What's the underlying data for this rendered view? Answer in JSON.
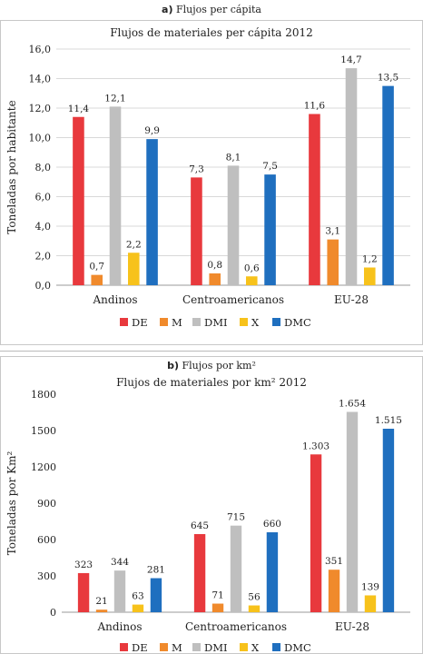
{
  "chart_data": [
    {
      "type": "bar",
      "heading_letter": "a)",
      "heading": "Flujos per cápita",
      "title": "Flujos de materiales per cápita 2012",
      "ylabel": "Toneladas por habitante",
      "xlabel": "",
      "ylim": [
        0,
        16
      ],
      "yticks": [
        "0,0",
        "2,0",
        "4,0",
        "6,0",
        "8,0",
        "10,0",
        "12,0",
        "14,0",
        "16,0"
      ],
      "categories": [
        "Andinos",
        "Centroamericanos",
        "EU-28"
      ],
      "series": [
        {
          "name": "DE",
          "color": "#e8393d",
          "values": [
            11.4,
            7.3,
            11.6
          ],
          "labels": [
            "11,4",
            "7,3",
            "11,6"
          ]
        },
        {
          "name": "M",
          "color": "#f08a2c",
          "values": [
            0.7,
            0.8,
            3.1
          ],
          "labels": [
            "0,7",
            "0,8",
            "3,1"
          ]
        },
        {
          "name": "DMI",
          "color": "#bfbfbf",
          "values": [
            12.1,
            8.1,
            14.7
          ],
          "labels": [
            "12,1",
            "8,1",
            "14,7"
          ]
        },
        {
          "name": "X",
          "color": "#f7c21b",
          "values": [
            2.2,
            0.6,
            1.2
          ],
          "labels": [
            "2,2",
            "0,6",
            "1,2"
          ]
        },
        {
          "name": "DMC",
          "color": "#1f6fbf",
          "values": [
            9.9,
            7.5,
            13.5
          ],
          "labels": [
            "9,9",
            "7,5",
            "13,5"
          ]
        }
      ],
      "grid": true,
      "legend": "bottom"
    },
    {
      "type": "bar",
      "heading_letter": "b)",
      "heading": "Flujos por km²",
      "title": "Flujos de materiales por km² 2012",
      "ylabel": "Toneladas por Km²",
      "xlabel": "",
      "ylim": [
        0,
        1800
      ],
      "yticks": [
        "0",
        "300",
        "600",
        "900",
        "1200",
        "1500",
        "1800"
      ],
      "categories": [
        "Andinos",
        "Centroamericanos",
        "EU-28"
      ],
      "series": [
        {
          "name": "DE",
          "color": "#e8393d",
          "values": [
            323,
            645,
            1303
          ],
          "labels": [
            "323",
            "645",
            "1.303"
          ]
        },
        {
          "name": "M",
          "color": "#f08a2c",
          "values": [
            21,
            71,
            351
          ],
          "labels": [
            "21",
            "71",
            "351"
          ]
        },
        {
          "name": "DMI",
          "color": "#bfbfbf",
          "values": [
            344,
            715,
            1654
          ],
          "labels": [
            "344",
            "715",
            "1.654"
          ]
        },
        {
          "name": "X",
          "color": "#f7c21b",
          "values": [
            63,
            56,
            139
          ],
          "labels": [
            "63",
            "56",
            "139"
          ]
        },
        {
          "name": "DMC",
          "color": "#1f6fbf",
          "values": [
            281,
            660,
            1515
          ],
          "labels": [
            "281",
            "660",
            "1.515"
          ]
        }
      ],
      "grid": false,
      "legend": "bottom"
    }
  ]
}
